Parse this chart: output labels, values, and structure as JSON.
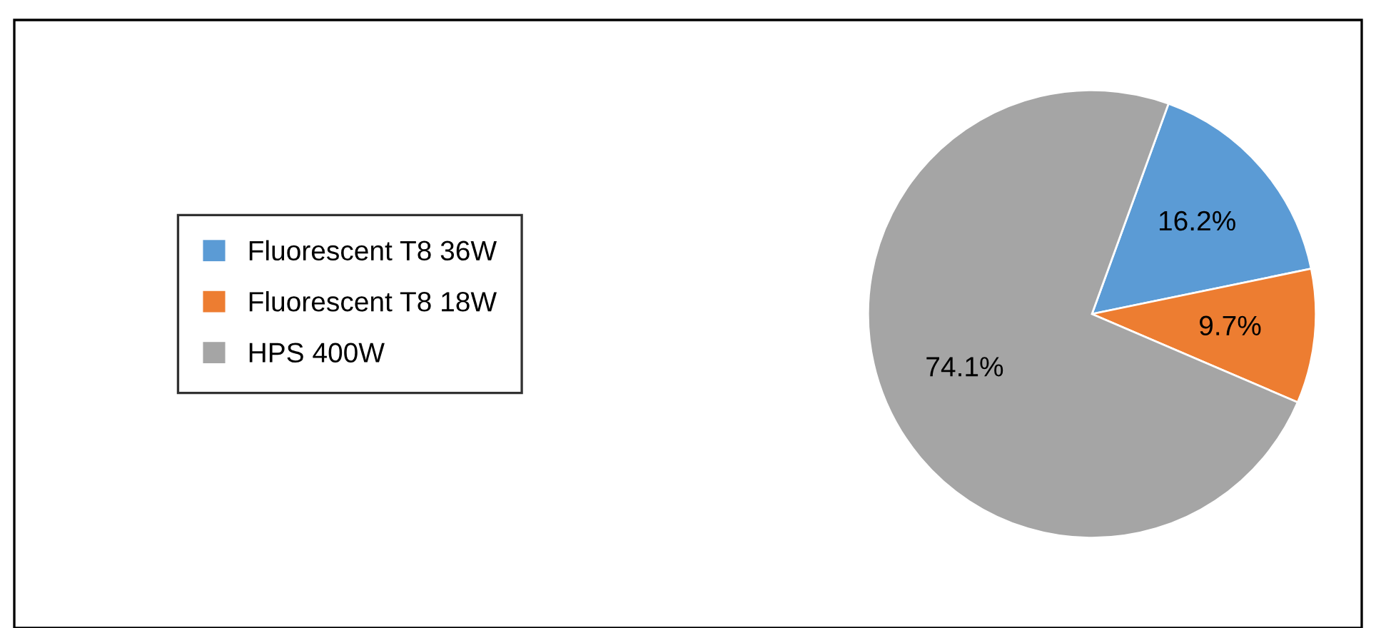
{
  "chart_data": {
    "type": "pie",
    "categories": [
      "Fluorescent T8 36W",
      "Fluorescent T8 18W",
      "HPS 400W"
    ],
    "values": [
      16.2,
      9.7,
      74.1
    ],
    "colors": [
      "#5b9bd5",
      "#ed7d31",
      "#a5a5a5"
    ],
    "value_labels": [
      "16.2%",
      "9.7%",
      "74.1%"
    ],
    "legend": "left"
  }
}
